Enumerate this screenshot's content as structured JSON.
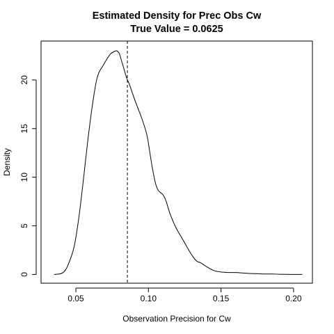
{
  "chart_data": {
    "type": "line",
    "title": "Estimated Density for Prec Obs Cw",
    "subtitle": "True Value = 0.0625",
    "xlabel": "Observation Precision for Cw",
    "ylabel": "Density",
    "xlim": [
      0.026,
      0.213
    ],
    "ylim": [
      -0.9,
      24.0
    ],
    "x_ticks": [
      0.05,
      0.1,
      0.15,
      0.2
    ],
    "x_tick_labels": [
      "0.05",
      "0.10",
      "0.15",
      "0.20"
    ],
    "y_ticks": [
      0,
      5,
      10,
      15,
      20
    ],
    "y_tick_labels": [
      "0",
      "5",
      "10",
      "15",
      "20"
    ],
    "reference_line": {
      "x": 0.0855,
      "style": "dashed"
    },
    "grid": false,
    "series": [
      {
        "x": [
          0.035,
          0.04,
          0.043,
          0.046,
          0.049,
          0.052,
          0.055,
          0.058,
          0.061,
          0.064,
          0.066,
          0.068,
          0.07,
          0.072,
          0.074,
          0.076,
          0.078,
          0.079,
          0.08,
          0.081,
          0.083,
          0.085,
          0.087,
          0.09,
          0.093,
          0.096,
          0.099,
          0.101,
          0.103,
          0.105,
          0.107,
          0.11,
          0.112,
          0.115,
          0.119,
          0.124,
          0.129,
          0.133,
          0.136,
          0.14,
          0.145,
          0.15,
          0.155,
          0.16,
          0.165,
          0.17,
          0.175,
          0.18,
          0.185,
          0.19,
          0.195,
          0.2,
          0.206
        ],
        "y": [
          0.0,
          0.1,
          0.5,
          1.5,
          3.0,
          5.8,
          9.5,
          13.5,
          17.0,
          19.8,
          20.8,
          21.3,
          21.8,
          22.3,
          22.7,
          22.9,
          23.0,
          22.9,
          22.7,
          22.2,
          21.2,
          20.2,
          19.5,
          18.2,
          17.0,
          15.8,
          14.3,
          12.5,
          10.7,
          9.3,
          8.6,
          8.2,
          7.6,
          6.2,
          4.8,
          3.5,
          2.2,
          1.4,
          1.2,
          0.8,
          0.4,
          0.25,
          0.2,
          0.2,
          0.15,
          0.1,
          0.08,
          0.05,
          0.05,
          0.02,
          0.01,
          0.0,
          0.0
        ]
      }
    ]
  }
}
